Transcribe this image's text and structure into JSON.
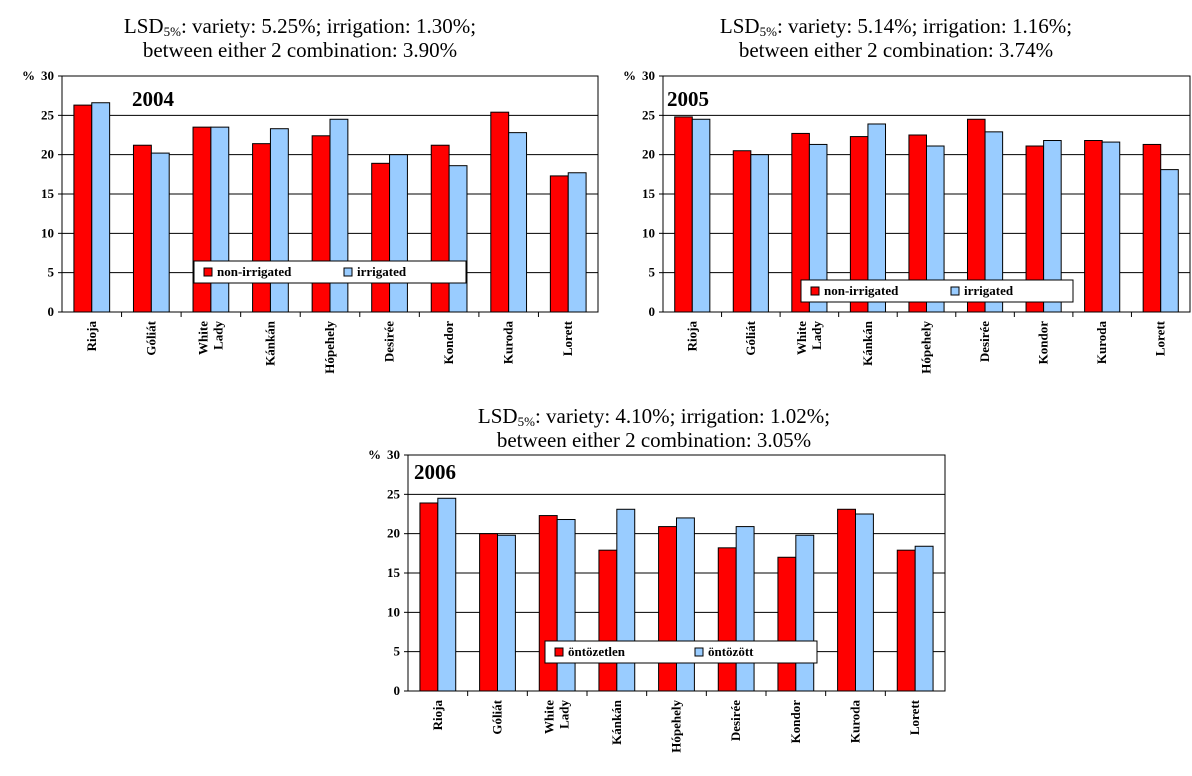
{
  "chart_data": [
    {
      "type": "bar",
      "year_label": "2004",
      "title": {
        "lsd_prefix": "LSD",
        "lsd_sub": "5%",
        "line1_rest": ": variety: 5.25%; irrigation: 1.30%;",
        "line2": "between either 2 combination: 3.90%"
      },
      "ylabel": "%",
      "ylim": [
        0,
        30
      ],
      "yticks": [
        "0",
        "5",
        "10",
        "15",
        "20",
        "25",
        "30"
      ],
      "grid": "horizontal",
      "legend_position": "bottom-center",
      "categories": [
        "Rioja",
        "Góliát",
        "White Lady",
        "Kánkán",
        "Hópehely",
        "Desirée",
        "Kondor",
        "Kuroda",
        "Lorett"
      ],
      "series": [
        {
          "name": "non-irrigated",
          "color": "#ff0000",
          "values": [
            26.3,
            21.2,
            23.5,
            21.4,
            22.4,
            18.9,
            21.2,
            25.4,
            17.3
          ]
        },
        {
          "name": "irrigated",
          "color": "#99ccff",
          "values": [
            26.6,
            20.2,
            23.5,
            23.3,
            24.5,
            20.0,
            18.6,
            22.8,
            17.7
          ]
        }
      ]
    },
    {
      "type": "bar",
      "year_label": "2005",
      "title": {
        "lsd_prefix": "LSD",
        "lsd_sub": "5%",
        "line1_rest": ": variety: 5.14%; irrigation: 1.16%;",
        "line2": "between either 2 combination: 3.74%"
      },
      "ylabel": "%",
      "ylim": [
        0,
        30
      ],
      "yticks": [
        "0",
        "5",
        "10",
        "15",
        "20",
        "25",
        "30"
      ],
      "grid": "horizontal",
      "legend_position": "bottom-center",
      "categories": [
        "Rioja",
        "Góliát",
        "White Lady",
        "Kánkán",
        "Hópehely",
        "Desirée",
        "Kondor",
        "Kuroda",
        "Lorett"
      ],
      "series": [
        {
          "name": "non-irrigated",
          "color": "#ff0000",
          "values": [
            24.8,
            20.5,
            22.7,
            22.3,
            22.5,
            24.5,
            21.1,
            21.8,
            21.3
          ]
        },
        {
          "name": "irrigated",
          "color": "#99ccff",
          "values": [
            24.5,
            20.0,
            21.3,
            23.9,
            21.1,
            22.9,
            21.8,
            21.6,
            18.1
          ]
        }
      ]
    },
    {
      "type": "bar",
      "year_label": "2006",
      "title": {
        "lsd_prefix": "LSD",
        "lsd_sub": "5%",
        "line1_rest": ": variety: 4.10%; irrigation: 1.02%;",
        "line2": "between either 2 combination: 3.05%"
      },
      "ylabel": "%",
      "ylim": [
        0,
        30
      ],
      "yticks": [
        "0",
        "5",
        "10",
        "15",
        "20",
        "25",
        "30"
      ],
      "grid": "horizontal",
      "legend_position": "bottom-center",
      "categories": [
        "Rioja",
        "Góliát",
        "White Lady",
        "Kánkán",
        "Hópehely",
        "Desirée",
        "Kondor",
        "Kuroda",
        "Lorett"
      ],
      "series": [
        {
          "name": "öntözetlen",
          "color": "#ff0000",
          "values": [
            23.9,
            20.0,
            22.3,
            17.9,
            20.9,
            18.2,
            17.0,
            23.1,
            17.9
          ]
        },
        {
          "name": "öntözött",
          "color": "#99ccff",
          "values": [
            24.5,
            19.8,
            21.8,
            23.1,
            22.0,
            20.9,
            19.8,
            22.5,
            18.4
          ]
        }
      ]
    }
  ]
}
